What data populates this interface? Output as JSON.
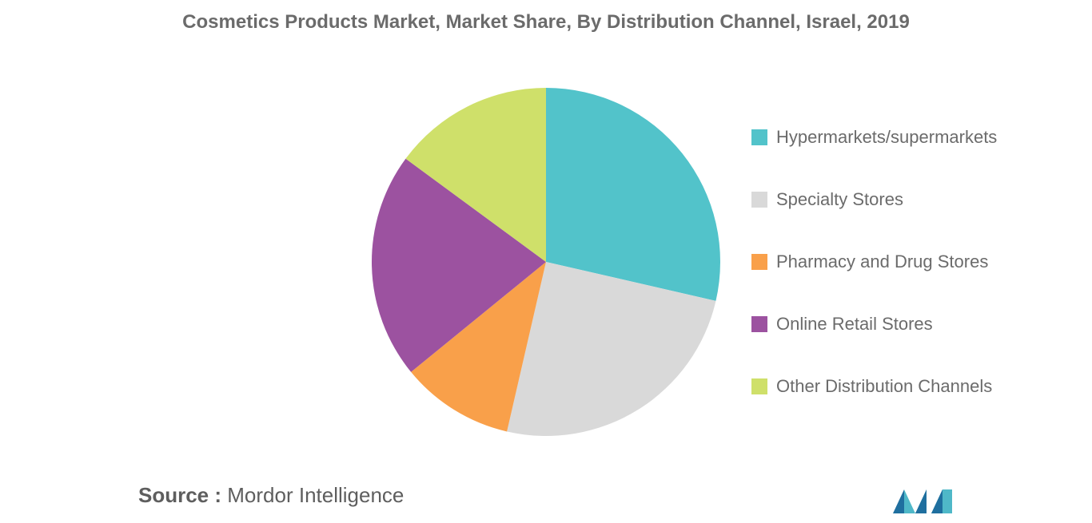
{
  "title": "Cosmetics Products Market, Market Share, By Distribution Channel, Israel, 2019",
  "chart_data": {
    "type": "pie",
    "title": "Cosmetics Products Market, Market Share, By Distribution Channel, Israel, 2019",
    "start_angle_deg": 0,
    "direction": "clockwise",
    "legend_position": "right",
    "slices": [
      {
        "label": "Hypermarkets/supermarkets",
        "value": 28.6,
        "color": "#52c3ca"
      },
      {
        "label": "Specialty Stores",
        "value": 25.0,
        "color": "#d9d9d9"
      },
      {
        "label": "Pharmacy and Drug Stores",
        "value": 10.5,
        "color": "#f9a04a"
      },
      {
        "label": "Online Retail Stores",
        "value": 21.0,
        "color": "#9c52a0"
      },
      {
        "label": "Other Distribution Channels",
        "value": 14.9,
        "color": "#cfe06a"
      }
    ]
  },
  "source": {
    "label": "Source :",
    "text": "Mordor Intelligence"
  },
  "logo": {
    "icon": "mordor-intelligence-logo",
    "colors": [
      "#1f6f9f",
      "#4fb8c8"
    ]
  }
}
